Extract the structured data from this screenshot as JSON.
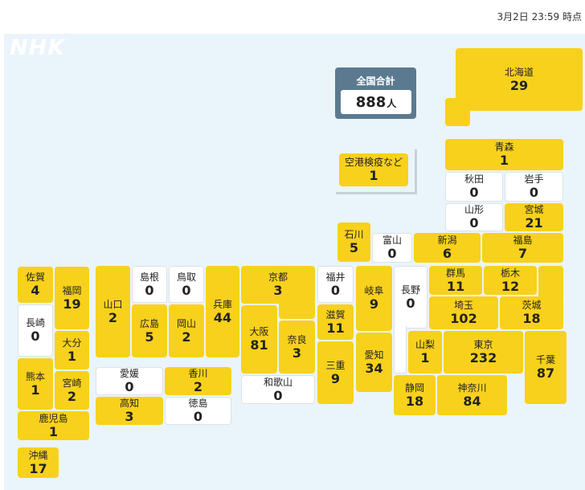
{
  "timestamp": "3月2日 23:59 時点",
  "logo": {
    "text": "NHK"
  },
  "total": {
    "label": "全国合計",
    "value": "888",
    "unit": "人"
  },
  "airport_quarantine": {
    "name": "空港検疫など",
    "count": 1
  },
  "colors": {
    "positive": "#f8d11c",
    "zero": "#ffffff",
    "panel_background": "#eaf4fb",
    "total_box": "#5b7a90"
  },
  "prefectures": [
    {
      "name": "北海道",
      "count": 29
    },
    {
      "name": "青森",
      "count": 1
    },
    {
      "name": "秋田",
      "count": 0
    },
    {
      "name": "岩手",
      "count": 0
    },
    {
      "name": "山形",
      "count": 0
    },
    {
      "name": "宮城",
      "count": 21
    },
    {
      "name": "石川",
      "count": 5
    },
    {
      "name": "富山",
      "count": 0
    },
    {
      "name": "新潟",
      "count": 6
    },
    {
      "name": "福島",
      "count": 7
    },
    {
      "name": "佐賀",
      "count": 4
    },
    {
      "name": "福岡",
      "count": 19
    },
    {
      "name": "長崎",
      "count": 0
    },
    {
      "name": "大分",
      "count": 1
    },
    {
      "name": "熊本",
      "count": 1
    },
    {
      "name": "宮崎",
      "count": 2
    },
    {
      "name": "鹿児島",
      "count": 1
    },
    {
      "name": "沖縄",
      "count": 17
    },
    {
      "name": "山口",
      "count": 2
    },
    {
      "name": "島根",
      "count": 0
    },
    {
      "name": "鳥取",
      "count": 0
    },
    {
      "name": "広島",
      "count": 5
    },
    {
      "name": "岡山",
      "count": 2
    },
    {
      "name": "兵庫",
      "count": 44
    },
    {
      "name": "京都",
      "count": 3
    },
    {
      "name": "大阪",
      "count": 81
    },
    {
      "name": "奈良",
      "count": 3
    },
    {
      "name": "和歌山",
      "count": 0
    },
    {
      "name": "福井",
      "count": 0
    },
    {
      "name": "滋賀",
      "count": 11
    },
    {
      "name": "三重",
      "count": 9
    },
    {
      "name": "岐阜",
      "count": 9
    },
    {
      "name": "愛知",
      "count": 34
    },
    {
      "name": "長野",
      "count": 0
    },
    {
      "name": "群馬",
      "count": 11
    },
    {
      "name": "栃木",
      "count": 12
    },
    {
      "name": "茨城",
      "count": 18
    },
    {
      "name": "埼玉",
      "count": 102
    },
    {
      "name": "山梨",
      "count": 1
    },
    {
      "name": "東京",
      "count": 232
    },
    {
      "name": "千葉",
      "count": 87
    },
    {
      "name": "静岡",
      "count": 18
    },
    {
      "name": "神奈川",
      "count": 84
    },
    {
      "name": "愛媛",
      "count": 0
    },
    {
      "name": "香川",
      "count": 2
    },
    {
      "name": "高知",
      "count": 3
    },
    {
      "name": "徳島",
      "count": 0
    }
  ]
}
